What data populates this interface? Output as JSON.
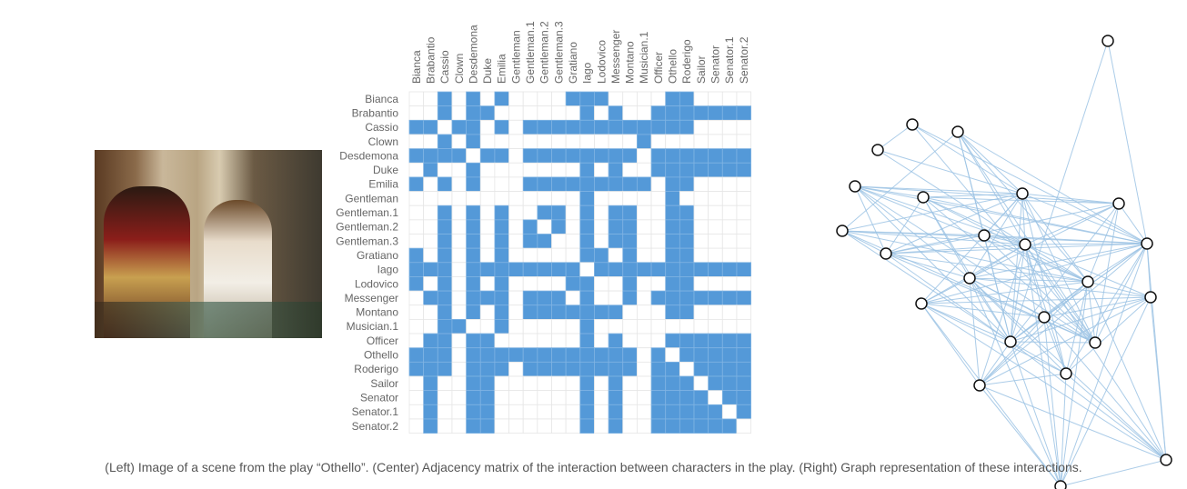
{
  "caption": "(Left) Image of a scene from the play “Othello”. (Center) Adjacency matrix of the interaction between characters in the play. (Right) Graph representation of these interactions.",
  "colors": {
    "filled": "#5499d8",
    "grid": "#e6e6e6",
    "label": "#666666",
    "edge": "#9cc3e4"
  },
  "chart_data": {
    "type": "heatmap",
    "title": "Adjacency matrix",
    "labels": [
      "Bianca",
      "Brabantio",
      "Cassio",
      "Clown",
      "Desdemona",
      "Duke",
      "Emilia",
      "Gentleman",
      "Gentleman.1",
      "Gentleman.2",
      "Gentleman.3",
      "Gratiano",
      "Iago",
      "Lodovico",
      "Messenger",
      "Montano",
      "Musician.1",
      "Officer",
      "Othello",
      "Roderigo",
      "Sailor",
      "Senator",
      "Senator.1",
      "Senator.2"
    ],
    "rows": [
      "001010100001110000110000",
      "001011000000101001111111",
      "110110101111111111110000",
      "001010000000000010000000",
      "111101101111111101111111",
      "010010000000101001111111",
      "101010001111111110110000",
      "000000000000100000100000",
      "001010100110101100110000",
      "001010101010101100110000",
      "001010101100101100110000",
      "101010100000110100110000",
      "111011111111011111111111",
      "101010100001100100110000",
      "011011101110100101111111",
      "001010101111111000110000",
      "001100100000100000000000",
      "011011000000101000111111",
      "111011111111111101011111",
      "111011101111111101101111",
      "010011000000101001110111",
      "010011000000101001111011",
      "010011000000101001111101",
      "010011000000101001111110"
    ]
  }
}
